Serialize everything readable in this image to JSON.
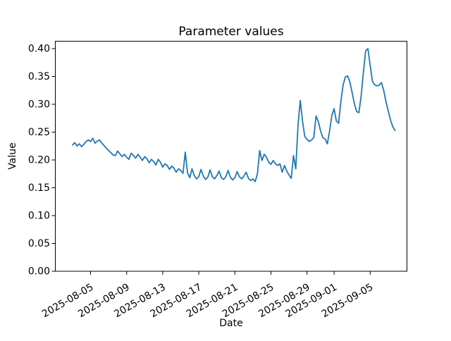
{
  "figure": {
    "background": "#ffffff"
  },
  "chart_data": {
    "type": "line",
    "title": "Parameter values",
    "xlabel": "Date",
    "ylabel": "Value",
    "grid": false,
    "legend": null,
    "line_color": "#1f77b4",
    "ylim": [
      0.0,
      0.413
    ],
    "y_tick_labels": [
      "0.00",
      "0.05",
      "0.10",
      "0.15",
      "0.20",
      "0.25",
      "0.30",
      "0.35",
      "0.40"
    ],
    "x_tick_labels": [
      "2025-08-05",
      "2025-08-09",
      "2025-08-13",
      "2025-08-17",
      "2025-08-21",
      "2025-08-25",
      "2025-08-29",
      "2025-09-01",
      "2025-09-05"
    ],
    "x_start": "2025-08-03",
    "x_interval_hours": 6,
    "values": [
      0.227,
      0.231,
      0.225,
      0.229,
      0.224,
      0.228,
      0.233,
      0.236,
      0.233,
      0.239,
      0.23,
      0.234,
      0.236,
      0.23,
      0.226,
      0.221,
      0.217,
      0.213,
      0.209,
      0.208,
      0.216,
      0.211,
      0.206,
      0.21,
      0.205,
      0.201,
      0.212,
      0.208,
      0.203,
      0.21,
      0.205,
      0.199,
      0.206,
      0.202,
      0.195,
      0.201,
      0.197,
      0.191,
      0.201,
      0.196,
      0.187,
      0.193,
      0.19,
      0.183,
      0.189,
      0.185,
      0.178,
      0.184,
      0.181,
      0.176,
      0.214,
      0.177,
      0.168,
      0.184,
      0.172,
      0.166,
      0.17,
      0.183,
      0.171,
      0.165,
      0.169,
      0.182,
      0.17,
      0.166,
      0.172,
      0.18,
      0.168,
      0.165,
      0.17,
      0.181,
      0.169,
      0.164,
      0.168,
      0.179,
      0.17,
      0.166,
      0.171,
      0.178,
      0.167,
      0.163,
      0.166,
      0.161,
      0.175,
      0.217,
      0.199,
      0.21,
      0.205,
      0.196,
      0.192,
      0.199,
      0.193,
      0.19,
      0.193,
      0.178,
      0.19,
      0.18,
      0.173,
      0.167,
      0.208,
      0.184,
      0.262,
      0.307,
      0.27,
      0.242,
      0.237,
      0.233,
      0.236,
      0.24,
      0.279,
      0.269,
      0.252,
      0.24,
      0.238,
      0.229,
      0.252,
      0.28,
      0.292,
      0.27,
      0.266,
      0.305,
      0.335,
      0.349,
      0.351,
      0.34,
      0.321,
      0.301,
      0.287,
      0.285,
      0.315,
      0.358,
      0.396,
      0.4,
      0.37,
      0.341,
      0.335,
      0.333,
      0.334,
      0.339,
      0.325,
      0.305,
      0.288,
      0.272,
      0.26,
      0.253
    ]
  }
}
